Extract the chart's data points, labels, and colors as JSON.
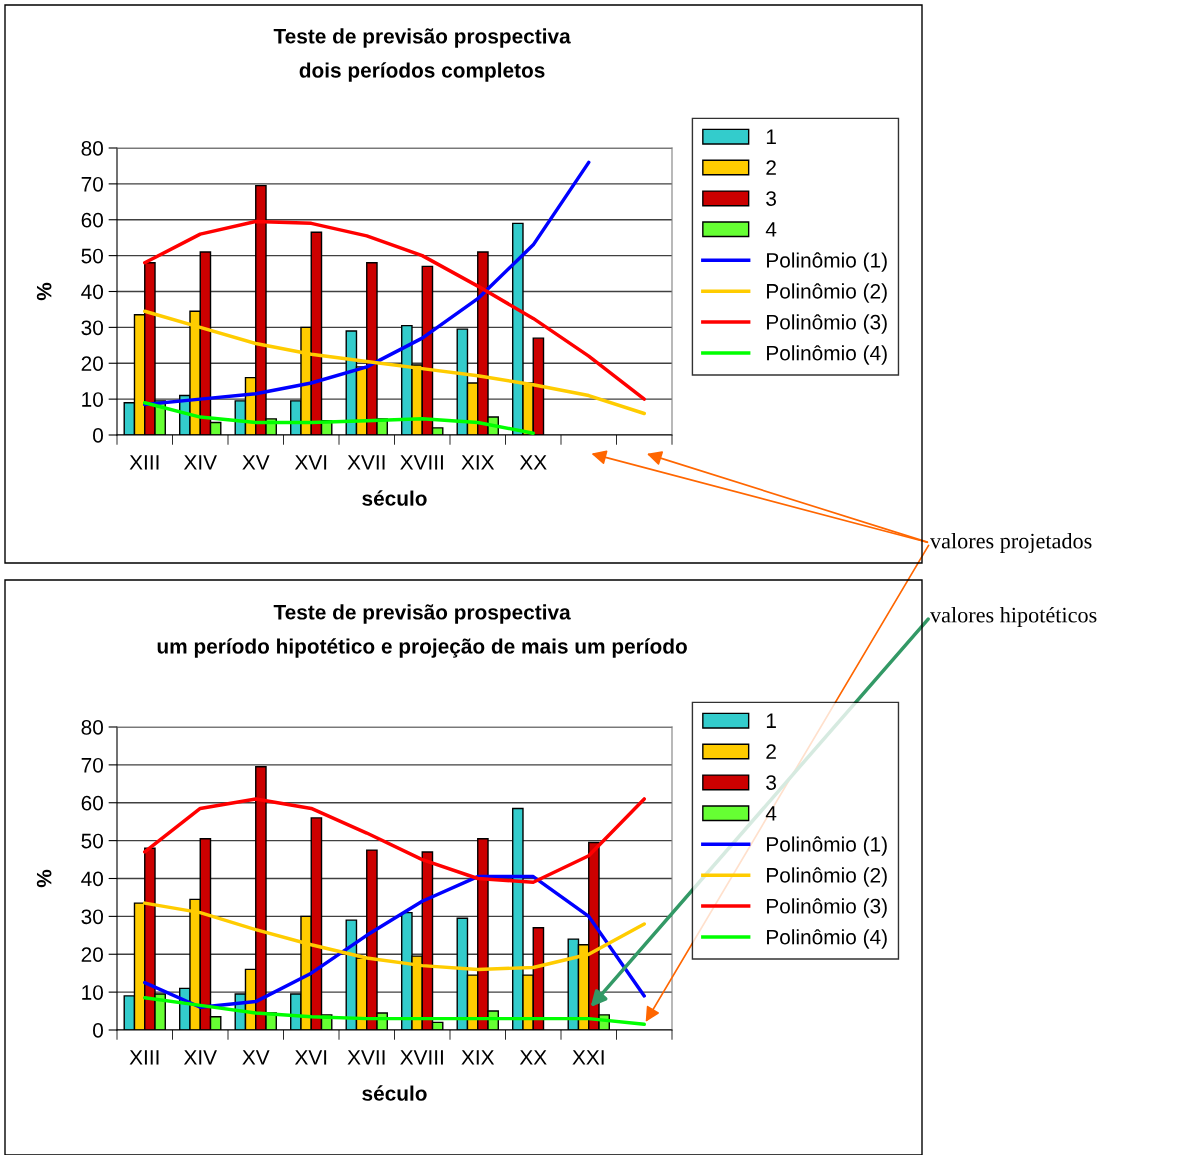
{
  "chart_data": [
    {
      "type": "bar",
      "title": "Teste de previsão prospectiva",
      "subtitle": "dois períodos completos",
      "xlabel": "século",
      "ylabel": "%",
      "categories": [
        "XIII",
        "XIV",
        "XV",
        "XVI",
        "XVII",
        "XVIII",
        "XIX",
        "XX",
        null,
        null
      ],
      "ylim": [
        0,
        80
      ],
      "yticks": [
        0,
        10,
        20,
        30,
        40,
        50,
        60,
        70,
        80
      ],
      "grid": "y",
      "legend": "right",
      "series": [
        {
          "name": "1",
          "color": "#33cccc",
          "values": [
            9,
            11,
            9.5,
            9.5,
            29,
            30.5,
            29.5,
            59,
            null,
            null
          ]
        },
        {
          "name": "2",
          "color": "#ffcc00",
          "values": [
            33.5,
            34.5,
            16,
            30,
            19,
            19.5,
            14.5,
            14.5,
            null,
            null
          ]
        },
        {
          "name": "3",
          "color": "#cc0000",
          "values": [
            48,
            51,
            69.5,
            56.5,
            48,
            47,
            51,
            27,
            null,
            null
          ]
        },
        {
          "name": "4",
          "color": "#66ff33",
          "values": [
            9.5,
            3.5,
            4.5,
            4,
            4.5,
            2,
            5,
            null,
            null,
            null
          ]
        },
        {
          "name": "Polinômio (1)",
          "type": "line",
          "color": "#0000ff",
          "values": [
            8.5,
            10,
            11.5,
            14.5,
            19,
            27,
            38,
            53,
            76,
            null
          ]
        },
        {
          "name": "Polinômio (2)",
          "type": "line",
          "color": "#ffcc00",
          "values": [
            34.5,
            30,
            25.5,
            22.5,
            20.5,
            18.5,
            16.5,
            14,
            11,
            6
          ]
        },
        {
          "name": "Polinômio (3)",
          "type": "line",
          "color": "#ff0000",
          "values": [
            48,
            56,
            59.5,
            59,
            55.5,
            50,
            41.5,
            32.5,
            22,
            10
          ]
        },
        {
          "name": "Polinômio (4)",
          "type": "line",
          "color": "#00ff00",
          "values": [
            9,
            5,
            3.5,
            3.5,
            4,
            4.5,
            3.5,
            0.5,
            null,
            null
          ]
        }
      ],
      "annotations": [
        "valores projetados"
      ]
    },
    {
      "type": "bar",
      "title": "Teste de previsão prospectiva",
      "subtitle": "um período hipotético e projeção de mais um período",
      "xlabel": "século",
      "ylabel": "%",
      "categories": [
        "XIII",
        "XIV",
        "XV",
        "XVI",
        "XVII",
        "XVIII",
        "XIX",
        "XX",
        "XXI",
        null
      ],
      "ylim": [
        0,
        80
      ],
      "yticks": [
        0,
        10,
        20,
        30,
        40,
        50,
        60,
        70,
        80
      ],
      "grid": "y",
      "legend": "right",
      "series": [
        {
          "name": "1",
          "color": "#33cccc",
          "values": [
            9,
            11,
            9.5,
            9.5,
            29,
            31,
            29.5,
            58.5,
            24,
            null
          ]
        },
        {
          "name": "2",
          "color": "#ffcc00",
          "values": [
            33.5,
            34.5,
            16,
            30,
            19,
            19.5,
            14.5,
            14.5,
            22.5,
            null
          ]
        },
        {
          "name": "3",
          "color": "#cc0000",
          "values": [
            48,
            50.5,
            69.5,
            56,
            47.5,
            47,
            50.5,
            27,
            49.5,
            null
          ]
        },
        {
          "name": "4",
          "color": "#66ff33",
          "values": [
            9.5,
            3.5,
            4.5,
            4,
            4.5,
            2,
            5,
            null,
            4,
            null
          ]
        },
        {
          "name": "Polinômio (1)",
          "type": "line",
          "color": "#0000ff",
          "values": [
            12.5,
            6,
            7.5,
            15,
            25,
            34,
            40.5,
            40.5,
            30,
            9
          ]
        },
        {
          "name": "Polinômio (2)",
          "type": "line",
          "color": "#ffcc00",
          "values": [
            33.5,
            31,
            26.5,
            22.5,
            19,
            17,
            16,
            16.5,
            20,
            28
          ]
        },
        {
          "name": "Polinômio (3)",
          "type": "line",
          "color": "#ff0000",
          "values": [
            47,
            58.5,
            61,
            58.5,
            52,
            45,
            40,
            39,
            46,
            61
          ]
        },
        {
          "name": "Polinômio (4)",
          "type": "line",
          "color": "#00ff00",
          "values": [
            8.5,
            6.5,
            4.5,
            3.5,
            3,
            3,
            3,
            3,
            3,
            1.5
          ]
        }
      ],
      "annotations": [
        "valores hipotéticos"
      ]
    }
  ]
}
